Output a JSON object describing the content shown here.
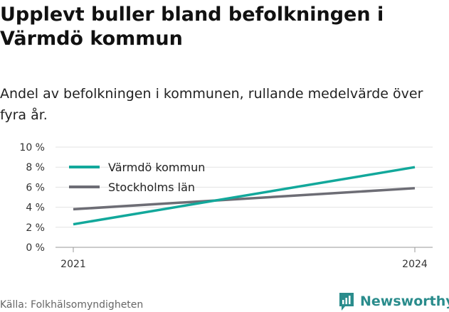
{
  "title": "Upplevt buller bland befolkningen i Värmdö kommun",
  "subtitle": "Andel av befolkningen i kommunen, rullande medelvärde över fyra år.",
  "source": "Källa: Folkhälsomyndigheten",
  "brand": {
    "name": "Newsworthy",
    "icon": "newsworthy-logo-icon",
    "color": "#2a8c8c"
  },
  "chart_data": {
    "type": "line",
    "x": [
      2021,
      2024
    ],
    "x_tick_labels": [
      "2021",
      "2024"
    ],
    "ylim": [
      0,
      10
    ],
    "y_ticks": [
      0,
      2,
      4,
      6,
      8,
      10
    ],
    "y_tick_labels": [
      "0 %",
      "2 %",
      "4 %",
      "6 %",
      "8 %",
      "10 %"
    ],
    "grid": true,
    "legend_position": "top-left",
    "series": [
      {
        "name": "Värmdö kommun",
        "values": [
          2.3,
          8.0
        ],
        "color": "#12a89b"
      },
      {
        "name": "Stockholms län",
        "values": [
          3.8,
          5.9
        ],
        "color": "#6d6d75"
      }
    ]
  }
}
